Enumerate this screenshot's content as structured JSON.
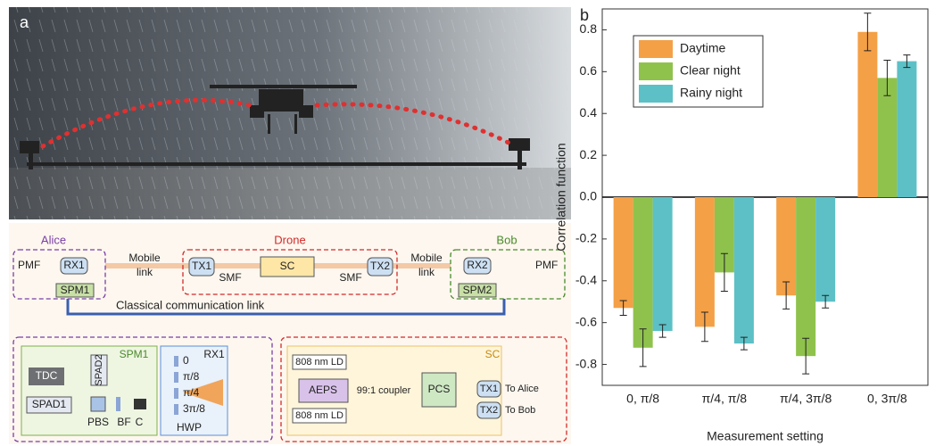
{
  "panel_a": {
    "label": "a",
    "alice": "Alice",
    "drone": "Drone",
    "bob": "Bob",
    "pmf_left": "PMF",
    "rx1": "RX1",
    "spm1": "SPM1",
    "mobile_link_left": [
      "Mobile",
      "link"
    ],
    "tx1": "TX1",
    "smf_left": "SMF",
    "sc": "SC",
    "smf_right": "SMF",
    "tx2": "TX2",
    "mobile_link_right": [
      "Mobile",
      "link"
    ],
    "rx2": "RX2",
    "spm2": "SPM2",
    "pmf_right": "PMF",
    "classical_link": "Classical communication link",
    "spm1_detail": {
      "title": "SPM1",
      "spad2": "SPAD2",
      "tdc": "TDC",
      "spad1": "SPAD1",
      "pbs": "PBS",
      "bf": "BF",
      "c": "C"
    },
    "rx1_detail": {
      "title": "RX1",
      "angles": [
        "0",
        "π/8",
        "π/4",
        "3π/8"
      ],
      "hwp": "HWP"
    },
    "sc_detail": {
      "title": "SC",
      "ld_top": "808 nm LD",
      "aeps": "AEPS",
      "coupler": "99:1 coupler",
      "ld_bottom": "808 nm LD",
      "pcs": "PCS",
      "tx1": "TX1",
      "tx2": "TX2",
      "to_alice": "To Alice",
      "to_bob": "To Bob"
    }
  },
  "chart_data": {
    "type": "bar",
    "panel_label": "b",
    "ylabel": "Correlation function",
    "xlabel": "Measurement setting",
    "categories": [
      "0, π/8",
      "π/4, π/8",
      "π/4, 3π/8",
      "0, 3π/8"
    ],
    "series": [
      {
        "name": "Daytime",
        "color": "#f4a047",
        "values": [
          -0.53,
          -0.62,
          -0.47,
          0.79
        ],
        "errors": [
          0.035,
          0.07,
          0.065,
          0.09
        ]
      },
      {
        "name": "Clear night",
        "color": "#8fc24c",
        "values": [
          -0.72,
          -0.36,
          -0.76,
          0.57
        ],
        "errors": [
          0.09,
          0.09,
          0.085,
          0.085
        ]
      },
      {
        "name": "Rainy night",
        "color": "#5cc0c6",
        "values": [
          -0.64,
          -0.7,
          -0.5,
          0.65
        ],
        "errors": [
          0.03,
          0.03,
          0.03,
          0.03
        ]
      }
    ],
    "ylim": [
      -0.9,
      0.9
    ],
    "yticks": [
      -0.8,
      -0.6,
      -0.4,
      -0.2,
      {
        "value": 0,
        "label": "0.0"
      },
      0.2,
      0.4,
      0.6,
      0.8
    ],
    "legend": "upper left"
  }
}
